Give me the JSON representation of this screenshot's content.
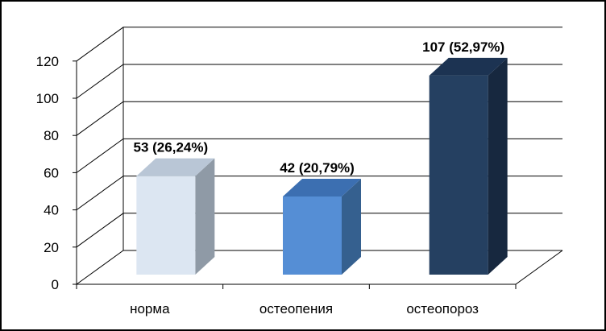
{
  "chart_data": {
    "type": "bar",
    "categories": [
      "норма",
      "остеопения",
      "остеопороз"
    ],
    "values": [
      53,
      42,
      107
    ],
    "data_labels": [
      "53 (26,24%)",
      "42 (20,79%)",
      "107 (52,97%)"
    ],
    "ylim": [
      0,
      120
    ],
    "yticks": [
      0,
      20,
      40,
      60,
      80,
      100,
      120
    ],
    "ytick_labels": [
      "0",
      "20",
      "40",
      "60",
      "80",
      "100",
      "120"
    ],
    "grid": true,
    "legend": "none",
    "three_d": true,
    "colors": {
      "bar_front": [
        "#dce6f2",
        "#558ed5",
        "#254061"
      ],
      "bar_top": [
        "#b9c6d6",
        "#3c6fb1",
        "#1c3352"
      ],
      "bar_side": [
        "#8f9aa6",
        "#35608f",
        "#17283f"
      ]
    }
  }
}
